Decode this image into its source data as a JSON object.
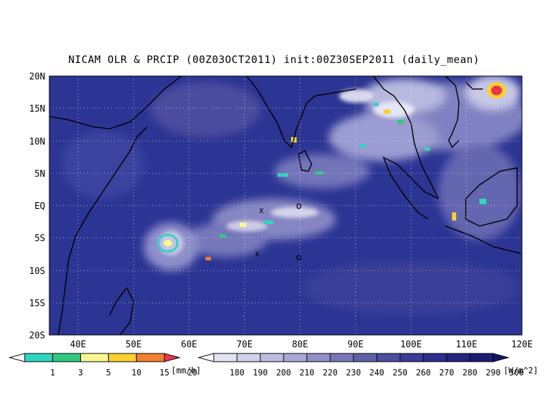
{
  "title": "NICAM OLR & PRCIP (00Z03OCT2011) init:00Z30SEP2011 (daily_mean)",
  "map": {
    "lon_range": [
      35,
      120
    ],
    "lat_range": [
      -20,
      20
    ],
    "lon_ticks": [
      "40E",
      "50E",
      "60E",
      "70E",
      "80E",
      "90E",
      "100E",
      "110E",
      "120E"
    ],
    "lat_ticks": [
      "20N",
      "15N",
      "10N",
      "5N",
      "EQ",
      "5S",
      "10S",
      "15S",
      "20S"
    ],
    "grid": "dotted",
    "background_color": "#2b3596",
    "coastline_color": "#000000"
  },
  "precip_scale": {
    "labels": [
      "1",
      "3",
      "5",
      "10",
      "15",
      "20"
    ],
    "unit": "[mm/h]",
    "colors": [
      "#ffffff",
      "#30d4c0",
      "#30c880",
      "#f8f890",
      "#f8d030",
      "#f08030",
      "#e83848"
    ]
  },
  "olr_scale": {
    "labels": [
      "180",
      "190",
      "200",
      "210",
      "220",
      "230",
      "240",
      "250",
      "260",
      "270",
      "280",
      "290",
      "300"
    ],
    "unit": "[W/m^2]",
    "colors": [
      "#ffffff",
      "#e2e2f0",
      "#d0d0e8",
      "#bcbce0",
      "#a8a8d6",
      "#9090c8",
      "#7878b8",
      "#6060a8",
      "#4c4ca0",
      "#3a3a98",
      "#2e2e8c",
      "#242480",
      "#1c1c74",
      "#14146a"
    ]
  },
  "markers": {
    "crosses": [
      "x",
      "x"
    ],
    "circles": [
      "o",
      "o"
    ]
  }
}
